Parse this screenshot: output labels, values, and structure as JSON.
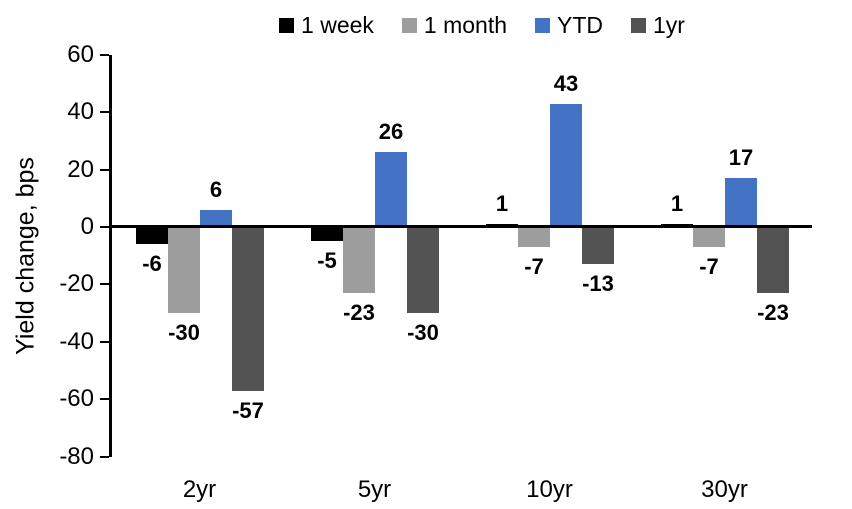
{
  "chart_data": {
    "type": "bar",
    "title": "",
    "ylabel": "Yield change, bps",
    "categories": [
      "2yr",
      "5yr",
      "10yr",
      "30yr"
    ],
    "series": [
      {
        "name": "1 week",
        "color": "#000000",
        "values": [
          -6,
          -5,
          1,
          1
        ]
      },
      {
        "name": "1 month",
        "color": "#9D9D9D",
        "values": [
          -30,
          -23,
          -7,
          -7
        ]
      },
      {
        "name": "YTD",
        "color": "#4472C4",
        "values": [
          6,
          26,
          43,
          17
        ]
      },
      {
        "name": "1yr",
        "color": "#525252",
        "values": [
          -57,
          -30,
          -13,
          -23
        ]
      }
    ],
    "ylim": [
      -80,
      60
    ],
    "ytick_step": 20,
    "grid": false,
    "legend_position": "top",
    "data_labels": true,
    "axis_color": "#000000",
    "text_color": "#000000",
    "background": "#FFFFFF"
  }
}
